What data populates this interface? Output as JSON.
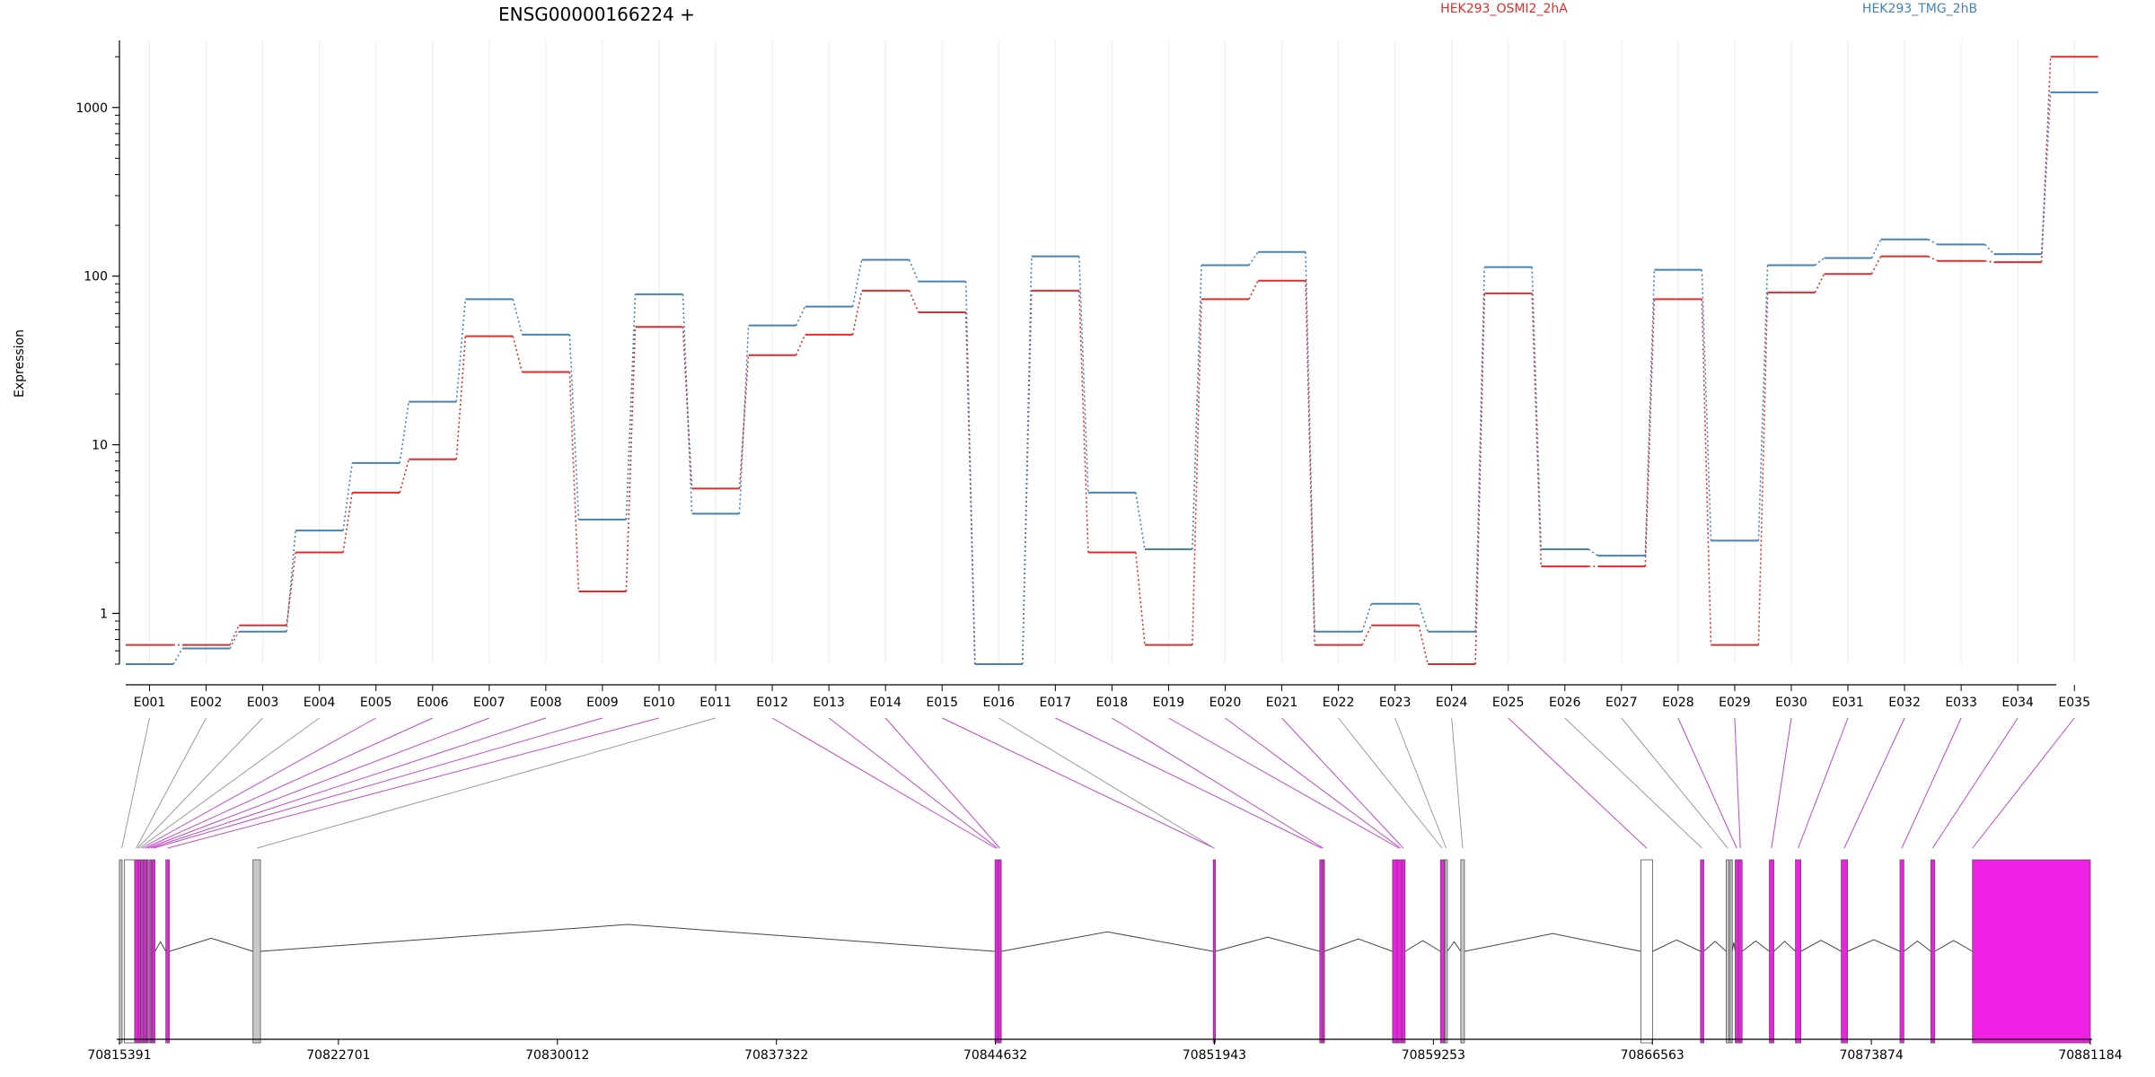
{
  "chart_data": {
    "type": "line",
    "title": "ENSG00000166224 +",
    "ylabel": "Expression",
    "xlabel": "",
    "y_scale": "log",
    "ylim": [
      0.5,
      2500
    ],
    "y_ticks": [
      1,
      10,
      100,
      1000
    ],
    "y_tick_labels": [
      "1",
      "10",
      "100",
      "1000"
    ],
    "grid": "vertical lines at exon bins",
    "legend": "top, horizontal",
    "categories": [
      "E001",
      "E002",
      "E003",
      "E004",
      "E005",
      "E006",
      "E007",
      "E008",
      "E009",
      "E010",
      "E011",
      "E012",
      "E013",
      "E014",
      "E015",
      "E016",
      "E017",
      "E018",
      "E019",
      "E020",
      "E021",
      "E022",
      "E023",
      "E024",
      "E025",
      "E026",
      "E027",
      "E028",
      "E029",
      "E030",
      "E031",
      "E032",
      "E033",
      "E034",
      "E035"
    ],
    "series": [
      {
        "name": "HEK293_OSMI2_2hA",
        "color": "#dc2e2e",
        "values": [
          0.65,
          0.65,
          0.85,
          2.3,
          5.2,
          8.2,
          44,
          27,
          1.35,
          50,
          5.5,
          34,
          45,
          82,
          61,
          0.5,
          82,
          2.3,
          0.65,
          73,
          94,
          0.65,
          0.85,
          0.5,
          79,
          1.9,
          1.9,
          73,
          0.65,
          80,
          103,
          131,
          123,
          121,
          2000
        ]
      },
      {
        "name": "HEK293_TMG_2hB",
        "color": "#4682b4",
        "values": [
          0.5,
          0.62,
          0.78,
          3.1,
          7.8,
          18,
          73,
          45,
          3.6,
          78,
          3.9,
          51,
          66,
          125,
          93,
          0.5,
          131,
          5.2,
          2.4,
          116,
          139,
          0.78,
          1.14,
          0.78,
          113,
          2.4,
          2.2,
          109,
          2.7,
          116,
          128,
          165,
          154,
          135,
          1230
        ]
      }
    ],
    "gene_model": {
      "axis_ticks": [
        "70815391",
        "70822701",
        "70830012",
        "70837322",
        "70844632",
        "70851943",
        "70859253",
        "70866563",
        "70873874",
        "70881184"
      ],
      "coord_range": [
        70815391,
        70881184
      ],
      "colors": {
        "tested": "#f01fe6",
        "untested": "#c8c8c8",
        "outline": "#555555"
      },
      "features": [
        {
          "start": 70815391,
          "end": 70815480,
          "type": "untested"
        },
        {
          "start": 70815560,
          "end": 70815900,
          "type": "blank"
        },
        {
          "start": 70815900,
          "end": 70816020,
          "type": "tested"
        },
        {
          "start": 70816020,
          "end": 70816090,
          "type": "tested"
        },
        {
          "start": 70816100,
          "end": 70816180,
          "type": "tested"
        },
        {
          "start": 70816200,
          "end": 70816280,
          "type": "tested"
        },
        {
          "start": 70816300,
          "end": 70816360,
          "type": "tested"
        },
        {
          "start": 70816400,
          "end": 70816470,
          "type": "tested"
        },
        {
          "start": 70816490,
          "end": 70816580,
          "type": "tested"
        },
        {
          "start": 70816940,
          "end": 70817060,
          "type": "tested"
        },
        {
          "start": 70819850,
          "end": 70820100,
          "type": "untested"
        },
        {
          "start": 70844620,
          "end": 70844730,
          "type": "tested"
        },
        {
          "start": 70844730,
          "end": 70844830,
          "type": "tested"
        },
        {
          "start": 70851905,
          "end": 70851980,
          "type": "tested"
        },
        {
          "start": 70855460,
          "end": 70855560,
          "type": "tested"
        },
        {
          "start": 70855560,
          "end": 70855610,
          "type": "tested"
        },
        {
          "start": 70857890,
          "end": 70858050,
          "type": "tested"
        },
        {
          "start": 70858050,
          "end": 70858200,
          "type": "tested"
        },
        {
          "start": 70858200,
          "end": 70858310,
          "type": "tested"
        },
        {
          "start": 70859490,
          "end": 70859620,
          "type": "tested"
        },
        {
          "start": 70859640,
          "end": 70859720,
          "type": "untested"
        },
        {
          "start": 70860170,
          "end": 70860290,
          "type": "untested"
        },
        {
          "start": 70866180,
          "end": 70866570,
          "type": "blank"
        },
        {
          "start": 70868170,
          "end": 70868280,
          "type": "tested"
        },
        {
          "start": 70869030,
          "end": 70869120,
          "type": "untested"
        },
        {
          "start": 70869160,
          "end": 70869230,
          "type": "untested"
        },
        {
          "start": 70869330,
          "end": 70869440,
          "type": "tested"
        },
        {
          "start": 70869440,
          "end": 70869560,
          "type": "tested"
        },
        {
          "start": 70870470,
          "end": 70870620,
          "type": "tested"
        },
        {
          "start": 70871340,
          "end": 70871520,
          "type": "tested"
        },
        {
          "start": 70872870,
          "end": 70873080,
          "type": "tested"
        },
        {
          "start": 70874830,
          "end": 70874960,
          "type": "tested"
        },
        {
          "start": 70875860,
          "end": 70875990,
          "type": "tested"
        },
        {
          "start": 70877250,
          "end": 70881184,
          "type": "tested"
        }
      ],
      "bin_map": [
        {
          "bin": "E001",
          "coord": 70815470,
          "type": "untested"
        },
        {
          "bin": "E002",
          "coord": 70815950,
          "type": "untested"
        },
        {
          "bin": "E003",
          "coord": 70816000,
          "type": "untested"
        },
        {
          "bin": "E004",
          "coord": 70816060,
          "type": "untested"
        },
        {
          "bin": "E005",
          "coord": 70816140,
          "type": "tested"
        },
        {
          "bin": "E006",
          "coord": 70816240,
          "type": "tested"
        },
        {
          "bin": "E007",
          "coord": 70816330,
          "type": "tested"
        },
        {
          "bin": "E008",
          "coord": 70816430,
          "type": "tested"
        },
        {
          "bin": "E009",
          "coord": 70816530,
          "type": "tested"
        },
        {
          "bin": "E010",
          "coord": 70817000,
          "type": "tested"
        },
        {
          "bin": "E011",
          "coord": 70819980,
          "type": "untested"
        },
        {
          "bin": "E012",
          "coord": 70844640,
          "type": "tested"
        },
        {
          "bin": "E013",
          "coord": 70844700,
          "type": "tested"
        },
        {
          "bin": "E014",
          "coord": 70844780,
          "type": "tested"
        },
        {
          "bin": "E015",
          "coord": 70851940,
          "type": "tested"
        },
        {
          "bin": "E016",
          "coord": 70851940,
          "type": "untested"
        },
        {
          "bin": "E017",
          "coord": 70855520,
          "type": "tested"
        },
        {
          "bin": "E018",
          "coord": 70855580,
          "type": "tested"
        },
        {
          "bin": "E019",
          "coord": 70858100,
          "type": "tested"
        },
        {
          "bin": "E020",
          "coord": 70858150,
          "type": "tested"
        },
        {
          "bin": "E021",
          "coord": 70858250,
          "type": "tested"
        },
        {
          "bin": "E022",
          "coord": 70859540,
          "type": "untested"
        },
        {
          "bin": "E023",
          "coord": 70859680,
          "type": "untested"
        },
        {
          "bin": "E024",
          "coord": 70860230,
          "type": "untested"
        },
        {
          "bin": "E025",
          "coord": 70866370,
          "type": "tested"
        },
        {
          "bin": "E026",
          "coord": 70868220,
          "type": "untested"
        },
        {
          "bin": "E027",
          "coord": 70869080,
          "type": "untested"
        },
        {
          "bin": "E028",
          "coord": 70869380,
          "type": "tested"
        },
        {
          "bin": "E029",
          "coord": 70869500,
          "type": "tested"
        },
        {
          "bin": "E030",
          "coord": 70870540,
          "type": "tested"
        },
        {
          "bin": "E031",
          "coord": 70871430,
          "type": "tested"
        },
        {
          "bin": "E032",
          "coord": 70872970,
          "type": "tested"
        },
        {
          "bin": "E033",
          "coord": 70874890,
          "type": "tested"
        },
        {
          "bin": "E034",
          "coord": 70875920,
          "type": "tested"
        },
        {
          "bin": "E035",
          "coord": 70877250,
          "type": "tested"
        }
      ]
    }
  }
}
